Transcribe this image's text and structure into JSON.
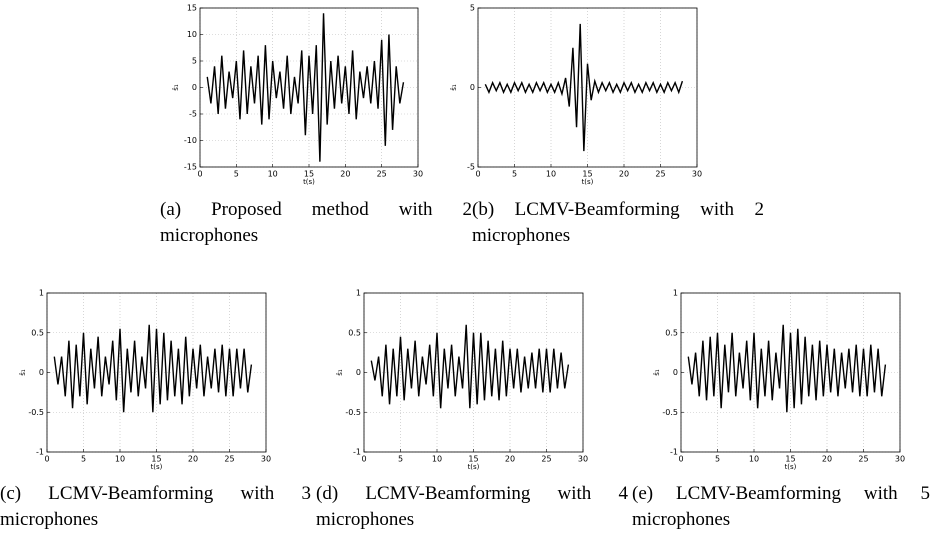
{
  "chart_data": [
    {
      "type": "line",
      "caption": "(a) Proposed method with 2 microphones",
      "x_label": "t(s)",
      "y_label": "ŝ₁",
      "color": "#000000",
      "grid": true,
      "xlim": [
        0,
        30
      ],
      "xticks": [
        0,
        5,
        10,
        15,
        20,
        25,
        30
      ],
      "ylim": [
        -15,
        15
      ],
      "yticks": [
        -15,
        -10,
        -5,
        0,
        5,
        10,
        15
      ],
      "x": [
        1,
        1.5,
        2,
        2.5,
        3,
        3.5,
        4,
        4.5,
        5,
        5.5,
        6,
        6.5,
        7,
        7.5,
        8,
        8.5,
        9,
        9.5,
        10,
        10.5,
        11,
        11.5,
        12,
        12.5,
        13,
        13.5,
        14,
        14.5,
        15,
        15.5,
        16,
        16.5,
        17,
        17.5,
        18,
        18.5,
        19,
        19.5,
        20,
        20.5,
        21,
        21.5,
        22,
        22.5,
        23,
        23.5,
        24,
        24.5,
        25,
        25.5,
        26,
        26.5,
        27,
        27.5,
        28
      ],
      "values": [
        2,
        -3,
        4,
        -5,
        6,
        -4,
        3,
        -2,
        5,
        -6,
        7,
        -5,
        4,
        -3,
        6,
        -7,
        8,
        -6,
        5,
        -2,
        3,
        -4,
        6,
        -5,
        2,
        -3,
        7,
        -9,
        6,
        -5,
        8,
        -14,
        14,
        -7,
        5,
        -4,
        6,
        -3,
        4,
        -5,
        7,
        -6,
        3,
        -2,
        4,
        -3,
        5,
        -4,
        9,
        -11,
        10,
        -8,
        4,
        -3,
        1
      ]
    },
    {
      "type": "line",
      "caption": "(b) LCMV-Beamforming with 2 microphones",
      "x_label": "t(s)",
      "y_label": "ŝ₁",
      "color": "#000000",
      "grid": true,
      "xlim": [
        0,
        30
      ],
      "xticks": [
        0,
        5,
        10,
        15,
        20,
        25,
        30
      ],
      "ylim": [
        -5,
        5
      ],
      "yticks": [
        -5,
        0,
        5
      ],
      "x": [
        1,
        1.5,
        2,
        2.5,
        3,
        3.5,
        4,
        4.5,
        5,
        5.5,
        6,
        6.5,
        7,
        7.5,
        8,
        8.5,
        9,
        9.5,
        10,
        10.5,
        11,
        11.5,
        12,
        12.5,
        13,
        13.5,
        14,
        14.5,
        15,
        15.5,
        16,
        16.5,
        17,
        17.5,
        18,
        18.5,
        19,
        19.5,
        20,
        20.5,
        21,
        21.5,
        22,
        22.5,
        23,
        23.5,
        24,
        24.5,
        25,
        25.5,
        26,
        26.5,
        27,
        27.5,
        28
      ],
      "values": [
        0.2,
        -0.3,
        0.3,
        -0.2,
        0.3,
        -0.3,
        0.2,
        -0.3,
        0.3,
        -0.2,
        0.3,
        -0.3,
        0.2,
        -0.3,
        0.3,
        -0.2,
        0.3,
        -0.3,
        0.2,
        -0.3,
        0.3,
        -0.4,
        0.6,
        -1.2,
        2.5,
        -2.5,
        4,
        -4,
        1.5,
        -0.8,
        0.4,
        -0.3,
        0.3,
        -0.2,
        0.3,
        -0.3,
        0.2,
        -0.3,
        0.3,
        -0.2,
        0.3,
        -0.3,
        0.2,
        -0.3,
        0.3,
        -0.2,
        0.3,
        -0.3,
        0.2,
        -0.3,
        0.3,
        -0.2,
        0.3,
        -0.3,
        0.4
      ]
    },
    {
      "type": "line",
      "caption": "(c) LCMV-Beamforming with 3 microphones",
      "x_label": "t(s)",
      "y_label": "ŝ₁",
      "color": "#000000",
      "grid": true,
      "xlim": [
        0,
        30
      ],
      "xticks": [
        0,
        5,
        10,
        15,
        20,
        25,
        30
      ],
      "ylim": [
        -1,
        1
      ],
      "yticks": [
        -1,
        -0.5,
        0,
        0.5,
        1
      ],
      "x": [
        1,
        1.5,
        2,
        2.5,
        3,
        3.5,
        4,
        4.5,
        5,
        5.5,
        6,
        6.5,
        7,
        7.5,
        8,
        8.5,
        9,
        9.5,
        10,
        10.5,
        11,
        11.5,
        12,
        12.5,
        13,
        13.5,
        14,
        14.5,
        15,
        15.5,
        16,
        16.5,
        17,
        17.5,
        18,
        18.5,
        19,
        19.5,
        20,
        20.5,
        21,
        21.5,
        22,
        22.5,
        23,
        23.5,
        24,
        24.5,
        25,
        25.5,
        26,
        26.5,
        27,
        27.5,
        28
      ],
      "values": [
        0.2,
        -0.15,
        0.2,
        -0.3,
        0.4,
        -0.45,
        0.35,
        -0.3,
        0.5,
        -0.4,
        0.3,
        -0.2,
        0.45,
        -0.3,
        0.2,
        -0.15,
        0.4,
        -0.35,
        0.55,
        -0.5,
        0.3,
        -0.25,
        0.4,
        -0.3,
        0.2,
        -0.2,
        0.6,
        -0.5,
        0.55,
        -0.4,
        0.5,
        -0.35,
        0.4,
        -0.3,
        0.3,
        -0.4,
        0.45,
        -0.3,
        0.3,
        -0.2,
        0.35,
        -0.3,
        0.2,
        -0.2,
        0.3,
        -0.25,
        0.35,
        -0.3,
        0.3,
        -0.3,
        0.3,
        -0.2,
        0.3,
        -0.25,
        0.1
      ]
    },
    {
      "type": "line",
      "caption": "(d) LCMV-Beamforming with 4 microphones",
      "x_label": "t(s)",
      "y_label": "ŝ₁",
      "color": "#000000",
      "grid": true,
      "xlim": [
        0,
        30
      ],
      "xticks": [
        0,
        5,
        10,
        15,
        20,
        25,
        30
      ],
      "ylim": [
        -1,
        1
      ],
      "yticks": [
        -1,
        -0.5,
        0,
        0.5,
        1
      ],
      "x": [
        1,
        1.5,
        2,
        2.5,
        3,
        3.5,
        4,
        4.5,
        5,
        5.5,
        6,
        6.5,
        7,
        7.5,
        8,
        8.5,
        9,
        9.5,
        10,
        10.5,
        11,
        11.5,
        12,
        12.5,
        13,
        13.5,
        14,
        14.5,
        15,
        15.5,
        16,
        16.5,
        17,
        17.5,
        18,
        18.5,
        19,
        19.5,
        20,
        20.5,
        21,
        21.5,
        22,
        22.5,
        23,
        23.5,
        24,
        24.5,
        25,
        25.5,
        26,
        26.5,
        27,
        27.5,
        28
      ],
      "values": [
        0.15,
        -0.1,
        0.2,
        -0.3,
        0.35,
        -0.4,
        0.3,
        -0.3,
        0.45,
        -0.35,
        0.3,
        -0.2,
        0.4,
        -0.3,
        0.2,
        -0.15,
        0.35,
        -0.3,
        0.5,
        -0.45,
        0.3,
        -0.2,
        0.35,
        -0.3,
        0.2,
        -0.2,
        0.6,
        -0.45,
        0.5,
        -0.4,
        0.5,
        -0.35,
        0.4,
        -0.3,
        0.3,
        -0.35,
        0.4,
        -0.3,
        0.3,
        -0.2,
        0.3,
        -0.25,
        0.2,
        -0.2,
        0.25,
        -0.2,
        0.3,
        -0.25,
        0.3,
        -0.25,
        0.3,
        -0.2,
        0.25,
        -0.2,
        0.1
      ]
    },
    {
      "type": "line",
      "caption": "(e) LCMV-Beamforming with 5 microphones",
      "x_label": "t(s)",
      "y_label": "ŝ₁",
      "color": "#000000",
      "grid": true,
      "xlim": [
        0,
        30
      ],
      "xticks": [
        0,
        5,
        10,
        15,
        20,
        25,
        30
      ],
      "ylim": [
        -1,
        1
      ],
      "yticks": [
        -1,
        -0.5,
        0,
        0.5,
        1
      ],
      "x": [
        1,
        1.5,
        2,
        2.5,
        3,
        3.5,
        4,
        4.5,
        5,
        5.5,
        6,
        6.5,
        7,
        7.5,
        8,
        8.5,
        9,
        9.5,
        10,
        10.5,
        11,
        11.5,
        12,
        12.5,
        13,
        13.5,
        14,
        14.5,
        15,
        15.5,
        16,
        16.5,
        17,
        17.5,
        18,
        18.5,
        19,
        19.5,
        20,
        20.5,
        21,
        21.5,
        22,
        22.5,
        23,
        23.5,
        24,
        24.5,
        25,
        25.5,
        26,
        26.5,
        27,
        27.5,
        28
      ],
      "values": [
        0.2,
        -0.15,
        0.25,
        -0.3,
        0.4,
        -0.35,
        0.45,
        -0.3,
        0.5,
        -0.45,
        0.35,
        -0.25,
        0.5,
        -0.3,
        0.25,
        -0.2,
        0.4,
        -0.35,
        0.5,
        -0.45,
        0.3,
        -0.3,
        0.4,
        -0.35,
        0.25,
        -0.2,
        0.6,
        -0.5,
        0.5,
        -0.45,
        0.55,
        -0.4,
        0.45,
        -0.3,
        0.35,
        -0.35,
        0.4,
        -0.3,
        0.35,
        -0.25,
        0.3,
        -0.3,
        0.25,
        -0.2,
        0.3,
        -0.25,
        0.35,
        -0.3,
        0.3,
        -0.3,
        0.35,
        -0.25,
        0.3,
        -0.3,
        0.1
      ]
    }
  ]
}
